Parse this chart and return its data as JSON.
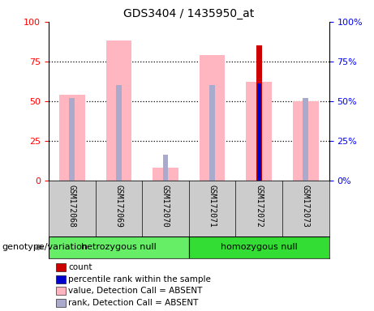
{
  "title": "GDS3404 / 1435950_at",
  "samples": [
    "GSM172068",
    "GSM172069",
    "GSM172070",
    "GSM172071",
    "GSM172072",
    "GSM172073"
  ],
  "pink_bar_values": [
    54,
    88,
    8,
    79,
    62,
    50
  ],
  "pink_bar_color": "#FFB6C1",
  "lavender_bar_values": [
    52,
    60,
    16,
    60,
    61,
    52
  ],
  "lavender_bar_color": "#AAAACC",
  "red_bar_values": [
    0,
    0,
    0,
    0,
    85,
    0
  ],
  "red_bar_color": "#CC0000",
  "blue_bar_values": [
    0,
    0,
    0,
    0,
    61,
    0
  ],
  "blue_bar_color": "#0000CC",
  "ylim": [
    0,
    100
  ],
  "yticks": [
    0,
    25,
    50,
    75,
    100
  ],
  "grid_vals": [
    25,
    50,
    75
  ],
  "hetero_color": "#66EE66",
  "homo_color": "#33DD33",
  "legend_items": [
    {
      "label": "count",
      "color": "#CC0000"
    },
    {
      "label": "percentile rank within the sample",
      "color": "#0000CC"
    },
    {
      "label": "value, Detection Call = ABSENT",
      "color": "#FFB6C1"
    },
    {
      "label": "rank, Detection Call = ABSENT",
      "color": "#AAAACC"
    }
  ]
}
